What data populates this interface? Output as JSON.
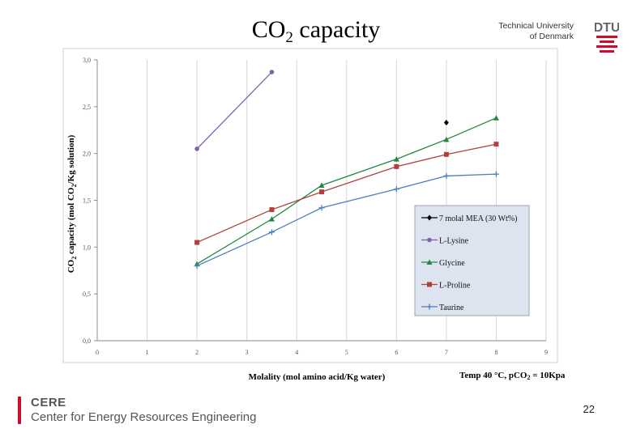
{
  "slide": {
    "title_main": "CO",
    "title_sub": "2",
    "title_rest": " capacity",
    "university_line1": "Technical University",
    "university_line2": "of Denmark",
    "logo_text": "DTU",
    "footer_org_short": "CERE",
    "footer_org_full": "Center for Energy Resources Engineering",
    "page_number": "22",
    "condition_prefix": "Temp 40 °C,  pCO",
    "condition_sub": "2",
    "condition_suffix": " = 10Kpa"
  },
  "colors": {
    "mea": "#000000",
    "lysine": "#7f63a8",
    "glycine": "#1e8a3c",
    "proline": "#b0413e",
    "taurine": "#4a7ebb",
    "logo_red": "#c8102e"
  },
  "chart_data": {
    "type": "line",
    "title": "",
    "xlabel": "Molality (mol amino acid/Kg water)",
    "ylabel": "CO2 capacity (mol CO2/Kg solution)",
    "xlim": [
      0,
      9
    ],
    "ylim": [
      0,
      3
    ],
    "x_ticks": [
      "0",
      "1",
      "2",
      "3",
      "4",
      "5",
      "6",
      "7",
      "8",
      "9"
    ],
    "y_ticks": [
      "0,0",
      "0,5",
      "1,0",
      "1,5",
      "2,0",
      "2,5",
      "3,0"
    ],
    "grid": "vertical",
    "legend": "bottom-right",
    "series": [
      {
        "name": "7 molal MEA (30 Wt%)",
        "color": "#000000",
        "marker": "diamond",
        "x": [
          7
        ],
        "y": [
          2.33
        ]
      },
      {
        "name": "L-Lysine",
        "color": "#7f63a8",
        "marker": "circle",
        "x": [
          2,
          3.5
        ],
        "y": [
          2.05,
          2.87
        ]
      },
      {
        "name": "Glycine",
        "color": "#1e8a3c",
        "marker": "triangle",
        "x": [
          2,
          3.5,
          4.5,
          6,
          7,
          8
        ],
        "y": [
          0.82,
          1.3,
          1.66,
          1.94,
          2.15,
          2.38
        ]
      },
      {
        "name": "L-Proline",
        "color": "#b0413e",
        "marker": "square",
        "x": [
          2,
          3.5,
          4.5,
          6,
          7,
          8
        ],
        "y": [
          1.05,
          1.4,
          1.59,
          1.86,
          1.99,
          2.1
        ]
      },
      {
        "name": "Taurine",
        "color": "#4a7ebb",
        "marker": "plus",
        "x": [
          2,
          3.5,
          4.5,
          6,
          7,
          8
        ],
        "y": [
          0.8,
          1.16,
          1.42,
          1.62,
          1.76,
          1.78
        ]
      }
    ]
  }
}
